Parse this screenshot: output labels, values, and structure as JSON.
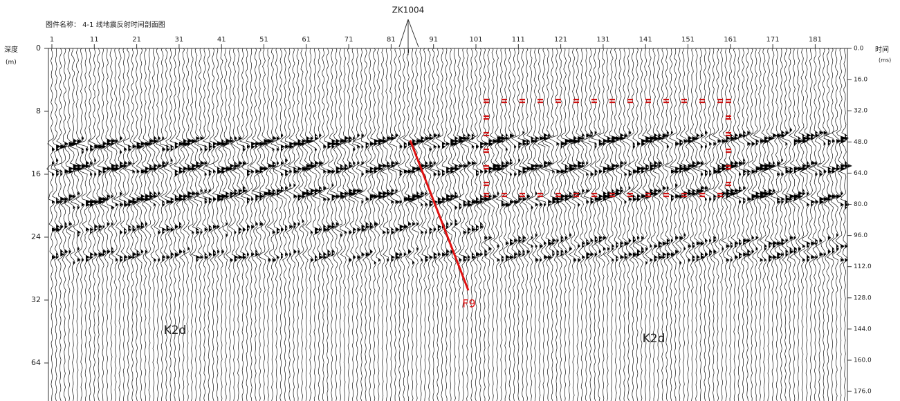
{
  "header": {
    "title": "图件名称： 4-1 线地震反射时间剖面图"
  },
  "well": {
    "label": "ZK1004"
  },
  "axes": {
    "top_ticks": [
      "1",
      "11",
      "21",
      "31",
      "41",
      "51",
      "61",
      "71",
      "81",
      "91",
      "101",
      "111",
      "121",
      "131",
      "141",
      "151",
      "161",
      "171",
      "181"
    ],
    "left_title": "深度",
    "left_unit": "(m)",
    "left_ticks": [
      "0",
      "8",
      "16",
      "24",
      "32",
      "64"
    ],
    "right_title": "时间",
    "right_unit": "(ms)",
    "right_ticks": [
      "0.0",
      "16.0",
      "32.0",
      "48.0",
      "64.0",
      "80.0",
      "96.0",
      "112.0",
      "128.0",
      "144.0",
      "160.0",
      "176.0"
    ]
  },
  "annotations": {
    "fault": "F9",
    "formation_left": "K2d",
    "formation_right": "K2d"
  }
}
